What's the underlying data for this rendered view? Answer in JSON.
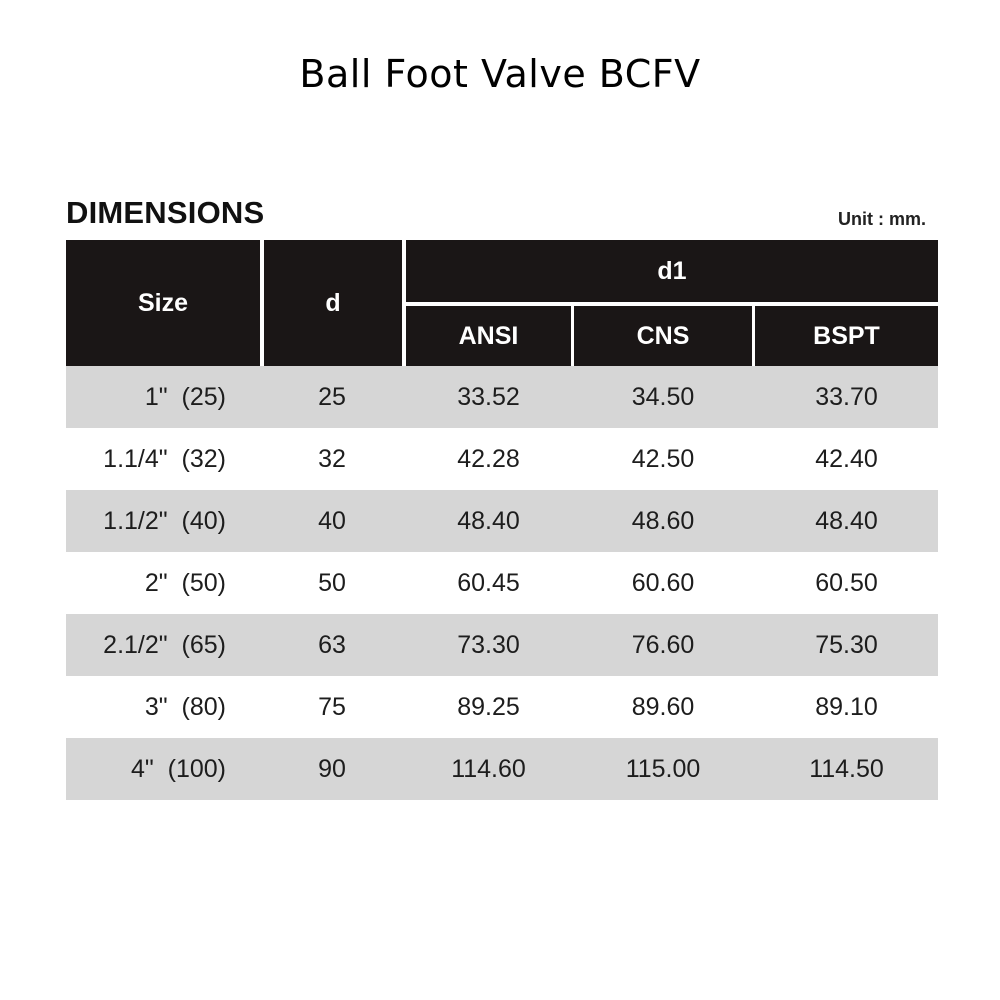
{
  "title": "Ball Foot Valve BCFV",
  "section_title": "DIMENSIONS",
  "unit": "Unit : mm.",
  "colors": {
    "header_bg": "#1a1616",
    "header_text": "#ffffff",
    "row_shade": "#d6d6d6",
    "row_plain": "#ffffff"
  },
  "table": {
    "headers": {
      "size": "Size",
      "d": "d",
      "d1": "d1",
      "ansi": "ANSI",
      "cns": "CNS",
      "bspt": "BSPT"
    },
    "rows": [
      {
        "size": "1\"  (25)",
        "d": "25",
        "ansi": "33.52",
        "cns": "34.50",
        "bspt": "33.70"
      },
      {
        "size": "1.1/4\"  (32)",
        "d": "32",
        "ansi": "42.28",
        "cns": "42.50",
        "bspt": "42.40"
      },
      {
        "size": "1.1/2\"  (40)",
        "d": "40",
        "ansi": "48.40",
        "cns": "48.60",
        "bspt": "48.40"
      },
      {
        "size": "2\"  (50)",
        "d": "50",
        "ansi": "60.45",
        "cns": "60.60",
        "bspt": "60.50"
      },
      {
        "size": "2.1/2\"  (65)",
        "d": "63",
        "ansi": "73.30",
        "cns": "76.60",
        "bspt": "75.30"
      },
      {
        "size": "3\"  (80)",
        "d": "75",
        "ansi": "89.25",
        "cns": "89.60",
        "bspt": "89.10"
      },
      {
        "size": "4\"  (100)",
        "d": "90",
        "ansi": "114.60",
        "cns": "115.00",
        "bspt": "114.50"
      }
    ]
  }
}
